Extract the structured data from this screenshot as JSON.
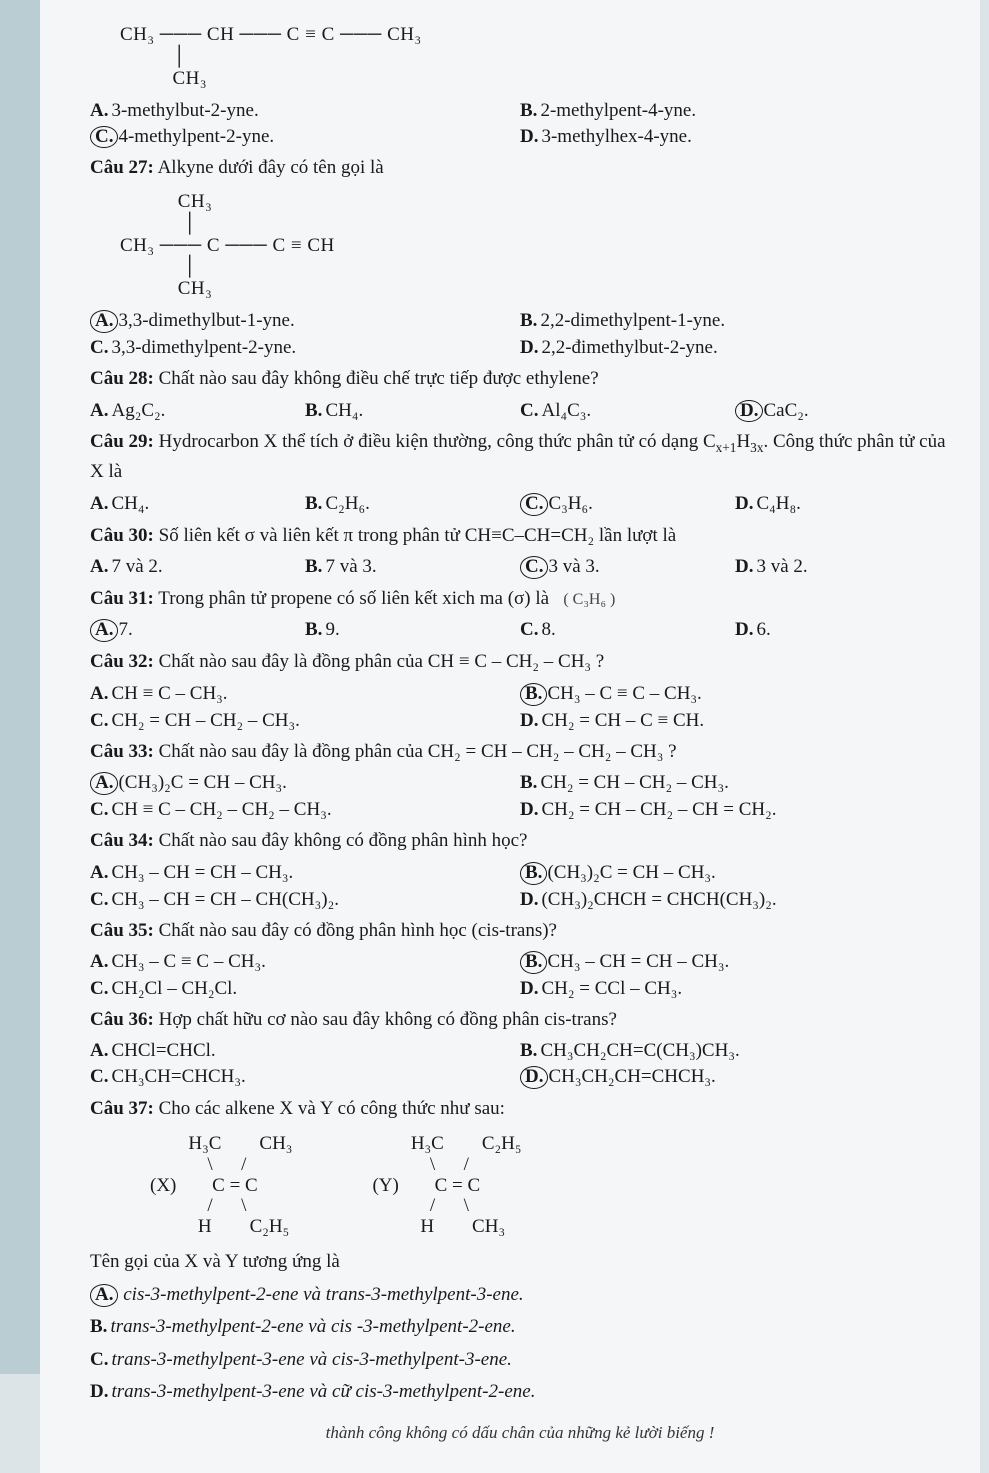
{
  "struct1": "CH₃ ─── CH ─── C ≡ C ─── CH₃\n          │\n          CH₃",
  "q26": {
    "opts": [
      {
        "lab": "A.",
        "txt": "3-methylbut-2-yne.",
        "mark": "circle-partial"
      },
      {
        "lab": "B.",
        "txt": "2-methylpent-4-yne."
      },
      {
        "lab": "C.",
        "txt": "4-methylpent-2-yne.",
        "mark": "circle"
      },
      {
        "lab": "D.",
        "txt": "3-methylhex-4-yne."
      }
    ]
  },
  "q27": {
    "title": "Câu 27:",
    "stem": " Alkyne dưới đây có tên gọi là",
    "struct": "           CH₃\n            │\nCH₃ ─── C ─── C ≡ CH\n            │\n           CH₃",
    "opts": [
      {
        "lab": "A.",
        "txt": "3,3-dimethylbut-1-yne.",
        "mark": "circle"
      },
      {
        "lab": "B.",
        "txt": "2,2-dimethylpent-1-yne."
      },
      {
        "lab": "C.",
        "txt": "3,3-dimethylpent-2-yne."
      },
      {
        "lab": "D.",
        "txt": "2,2-đimethylbut-2-yne."
      }
    ]
  },
  "q28": {
    "title": "Câu 28:",
    "stem": " Chất nào sau đây không điều chế trực tiếp được ethylene?",
    "opts": [
      {
        "lab": "A.",
        "txt": "Ag₂C₂."
      },
      {
        "lab": "B.",
        "txt": "CH₄."
      },
      {
        "lab": "C.",
        "txt": "Al₄C₃."
      },
      {
        "lab": "D.",
        "txt": "CaC₂.",
        "mark": "circle"
      }
    ]
  },
  "q29": {
    "title": "Câu 29:",
    "stem": " Hydrocarbon X thể tích ở điều kiện thường, công thức phân tử có dạng C",
    "stem2": ". Công thức phân tử của X là",
    "subscript": "x+1",
    "subscript2": "3x",
    "opts": [
      {
        "lab": "A.",
        "txt": "CH₄."
      },
      {
        "lab": "B.",
        "txt": "C₂H₆."
      },
      {
        "lab": "C.",
        "txt": "C₃H₆.",
        "mark": "circle"
      },
      {
        "lab": "D.",
        "txt": "C₄H₈."
      }
    ]
  },
  "q30": {
    "title": "Câu 30:",
    "stem": " Số liên kết σ  và liên kết π  trong phân tử CH≡C–CH=CH₂ lần lượt là",
    "opts": [
      {
        "lab": "A.",
        "txt": "7 và 2."
      },
      {
        "lab": "B.",
        "txt": "7 và 3."
      },
      {
        "lab": "C.",
        "txt": "3 và 3.",
        "mark": "circle"
      },
      {
        "lab": "D.",
        "txt": "3 và 2."
      }
    ]
  },
  "q31": {
    "title": "Câu 31:",
    "stem": " Trong phân tử propene có số liên kết xich ma (σ) là",
    "hand": "( C₃H₆ )",
    "opts": [
      {
        "lab": "A.",
        "txt": "7.",
        "mark": "circle"
      },
      {
        "lab": "B.",
        "txt": "9."
      },
      {
        "lab": "C.",
        "txt": "8."
      },
      {
        "lab": "D.",
        "txt": "6."
      }
    ]
  },
  "q32": {
    "title": "Câu 32:",
    "stem": " Chất nào sau đây là đồng phân của CH ≡ C – CH₂ – CH₃ ?",
    "opts": [
      {
        "lab": "A.",
        "txt": "CH ≡ C – CH₃."
      },
      {
        "lab": "B.",
        "txt": "CH₃ – C ≡ C – CH₃.",
        "mark": "circle"
      },
      {
        "lab": "C.",
        "txt": "CH₂ = CH – CH₂ – CH₃."
      },
      {
        "lab": "D.",
        "txt": "CH₂ = CH – C ≡ CH."
      }
    ]
  },
  "q33": {
    "title": "Câu 33:",
    "stem": " Chất nào sau đây là đồng phân của CH₂ = CH – CH₂ – CH₂ – CH₃ ?",
    "opts": [
      {
        "lab": "A.",
        "txt": "(CH₃)₂C = CH – CH₃.",
        "mark": "circle"
      },
      {
        "lab": "B.",
        "txt": "CH₂ = CH – CH₂ – CH₃."
      },
      {
        "lab": "C.",
        "txt": "CH ≡ C – CH₂ – CH₂ – CH₃."
      },
      {
        "lab": "D.",
        "txt": "CH₂ = CH – CH₂ – CH = CH₂."
      }
    ]
  },
  "q34": {
    "title": "Câu 34:",
    "stem": " Chất nào sau đây không có đồng phân hình học?",
    "opts": [
      {
        "lab": "A.",
        "txt": "CH₃ – CH = CH – CH₃."
      },
      {
        "lab": "B.",
        "txt": "(CH₃)₂C = CH – CH₃.",
        "mark": "circle"
      },
      {
        "lab": "C.",
        "txt": "CH₃ – CH = CH – CH(CH₃)₂."
      },
      {
        "lab": "D.",
        "txt": "(CH₃)₂CHCH = CHCH(CH₃)₂."
      }
    ]
  },
  "q35": {
    "title": "Câu 35:",
    "stem": " Chất nào sau đây có đồng phân hình học (cis-trans)?",
    "opts": [
      {
        "lab": "A.",
        "txt": "CH₃ – C ≡ C – CH₃."
      },
      {
        "lab": "B.",
        "txt": "CH₃ – CH = CH – CH₃.",
        "mark": "circle"
      },
      {
        "lab": "C.",
        "txt": "CH₂Cl – CH₂Cl."
      },
      {
        "lab": "D.",
        "txt": "CH₂ = CCl – CH₃."
      }
    ]
  },
  "q36": {
    "title": "Câu 36:",
    "stem": " Hợp chất hữu cơ nào sau đây không có đồng phân cis-trans?",
    "opts": [
      {
        "lab": "A.",
        "txt": "CHCl=CHCl."
      },
      {
        "lab": "B.",
        "txt": "CH₃CH₂CH=C(CH₃)CH₃."
      },
      {
        "lab": "C.",
        "txt": "CH₃CH=CHCH₃."
      },
      {
        "lab": "D.",
        "txt": "CH₃CH₂CH=CHCH₃.",
        "mark": "circle"
      }
    ]
  },
  "q37": {
    "title": "Câu 37:",
    "stem": " Cho các alkene X và Y có công thức như sau:",
    "structX_label": "(X)",
    "structX": "H₃C        CH₃\n    \\      /\n     C = C\n    /      \\\n  H        C₂H₅",
    "structY_label": "(Y)",
    "structY": "H₃C        C₂H₅\n    \\      /\n     C = C\n    /      \\\n  H        CH₃",
    "sub": "Tên gọi của X và Y tương ứng là",
    "opts": [
      {
        "lab": "A.",
        "txt": "cis-3-methylpent-2-ene và trans-3-methylpent-3-ene.",
        "mark": "circle"
      },
      {
        "lab": "B.",
        "txt": "trans-3-methylpent-2-ene và cis -3-methylpent-2-ene."
      },
      {
        "lab": "C.",
        "txt": "trans-3-methylpent-3-ene và cis-3-methylpent-3-ene."
      },
      {
        "lab": "D.",
        "txt": "trans-3-methylpent-3-ene và cữ cis-3-methylpent-2-ene."
      }
    ]
  },
  "footer": "thành công không có dấu chân của những kẻ lười biếng !"
}
